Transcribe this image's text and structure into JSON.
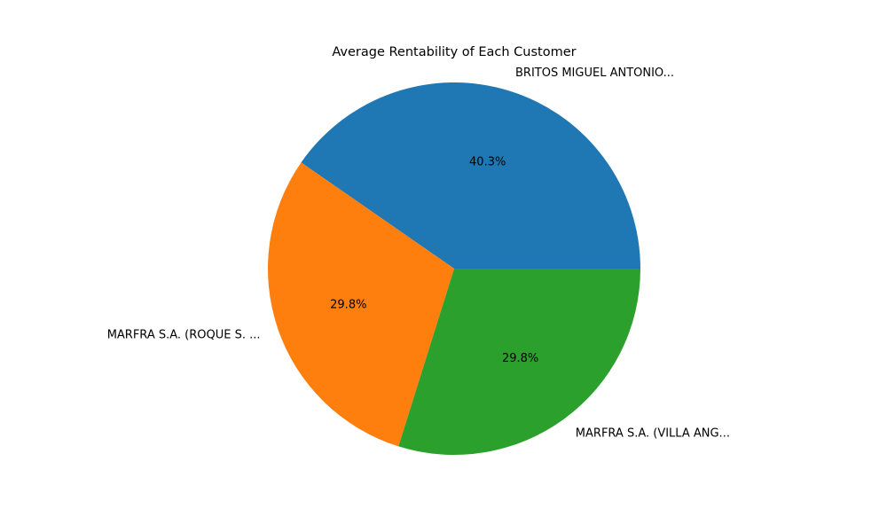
{
  "chart_data": {
    "type": "pie",
    "title": "Average Rentability of Each Customer",
    "start_angle_deg": 0,
    "direction": "counterclockwise",
    "slices": [
      {
        "label": "BRITOS MIGUEL ANTONIO...",
        "value": 40.3,
        "pct_label": "40.3%",
        "color": "#1f77b4"
      },
      {
        "label": "MARFRA S.A. (ROQUE S. ...",
        "value": 29.8,
        "pct_label": "29.8%",
        "color": "#ff7f0e"
      },
      {
        "label": "MARFRA S.A. (VILLA ANG...",
        "value": 29.8,
        "pct_label": "29.8%",
        "color": "#2ca02c"
      }
    ]
  }
}
